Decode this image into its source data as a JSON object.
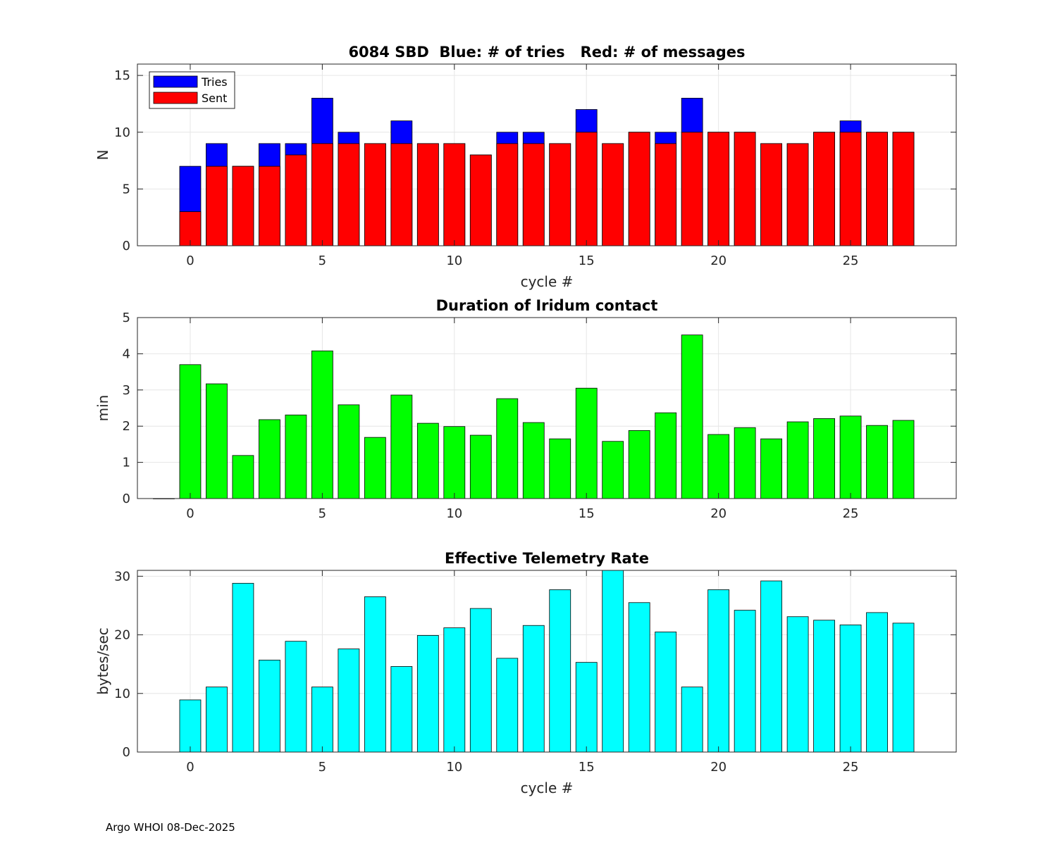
{
  "footer": "Argo WHOI 08-Dec-2025",
  "chart_data": [
    {
      "type": "bar",
      "stacking": "overlay",
      "title": "6084 SBD  Blue: # of tries   Red: # of messages",
      "xlabel": "cycle #",
      "ylabel": "N",
      "xlim": [
        -2,
        29
      ],
      "ylim": [
        0,
        16
      ],
      "xticks": [
        0,
        5,
        10,
        15,
        20,
        25
      ],
      "yticks": [
        0,
        5,
        10,
        15
      ],
      "grid": true,
      "legend": {
        "position": "top-left",
        "entries": [
          "Tries",
          "Sent"
        ]
      },
      "x": [
        0,
        1,
        2,
        3,
        4,
        5,
        6,
        7,
        8,
        9,
        10,
        11,
        12,
        13,
        14,
        15,
        16,
        17,
        18,
        19,
        20,
        21,
        22,
        23,
        24,
        25,
        26,
        27
      ],
      "series": [
        {
          "name": "Tries",
          "color": "#0000ff",
          "values": [
            7,
            9,
            7,
            9,
            9,
            13,
            10,
            9,
            11,
            9,
            9,
            8,
            10,
            10,
            9,
            12,
            9,
            10,
            10,
            13,
            10,
            10,
            9,
            9,
            10,
            11,
            10,
            10
          ]
        },
        {
          "name": "Sent",
          "color": "#ff0000",
          "values": [
            3,
            7,
            7,
            7,
            8,
            9,
            9,
            9,
            9,
            9,
            9,
            8,
            9,
            9,
            9,
            10,
            9,
            10,
            9,
            10,
            10,
            10,
            9,
            9,
            10,
            10,
            10,
            10
          ]
        }
      ]
    },
    {
      "type": "bar",
      "title": "Duration of Iridum contact",
      "xlabel": "",
      "ylabel": "min",
      "xlim": [
        -2,
        29
      ],
      "ylim": [
        0,
        5
      ],
      "xticks": [
        0,
        5,
        10,
        15,
        20,
        25
      ],
      "yticks": [
        0,
        1,
        2,
        3,
        4,
        5
      ],
      "grid": true,
      "x": [
        -1,
        0,
        1,
        2,
        3,
        4,
        5,
        6,
        7,
        8,
        9,
        10,
        11,
        12,
        13,
        14,
        15,
        16,
        17,
        18,
        19,
        20,
        21,
        22,
        23,
        24,
        25,
        26,
        27
      ],
      "series": [
        {
          "name": "Duration",
          "color": "#00ff00",
          "values": [
            0,
            3.7,
            3.17,
            1.19,
            2.18,
            2.31,
            4.08,
            2.59,
            1.69,
            2.86,
            2.08,
            1.99,
            1.75,
            2.76,
            2.1,
            1.65,
            3.05,
            1.58,
            1.88,
            2.37,
            4.52,
            1.77,
            1.96,
            1.65,
            2.12,
            2.21,
            2.28,
            2.02,
            2.16
          ]
        }
      ]
    },
    {
      "type": "bar",
      "title": "Effective Telemetry Rate",
      "xlabel": "cycle #",
      "ylabel": "bytes/sec",
      "xlim": [
        -2,
        29
      ],
      "ylim": [
        0,
        31
      ],
      "xticks": [
        0,
        5,
        10,
        15,
        20,
        25
      ],
      "yticks": [
        0,
        10,
        20,
        30
      ],
      "grid": true,
      "x": [
        0,
        1,
        2,
        3,
        4,
        5,
        6,
        7,
        8,
        9,
        10,
        11,
        12,
        13,
        14,
        15,
        16,
        17,
        18,
        19,
        20,
        21,
        22,
        23,
        24,
        25,
        26,
        27
      ],
      "series": [
        {
          "name": "Rate",
          "color": "#00ffff",
          "values": [
            8.9,
            11.1,
            28.8,
            15.7,
            18.9,
            11.1,
            17.6,
            26.5,
            14.6,
            19.9,
            21.2,
            24.5,
            16.0,
            21.6,
            27.7,
            15.3,
            31.0,
            25.5,
            20.5,
            11.1,
            27.7,
            24.2,
            29.2,
            23.1,
            22.5,
            21.7,
            23.8,
            22.0
          ]
        }
      ]
    }
  ]
}
